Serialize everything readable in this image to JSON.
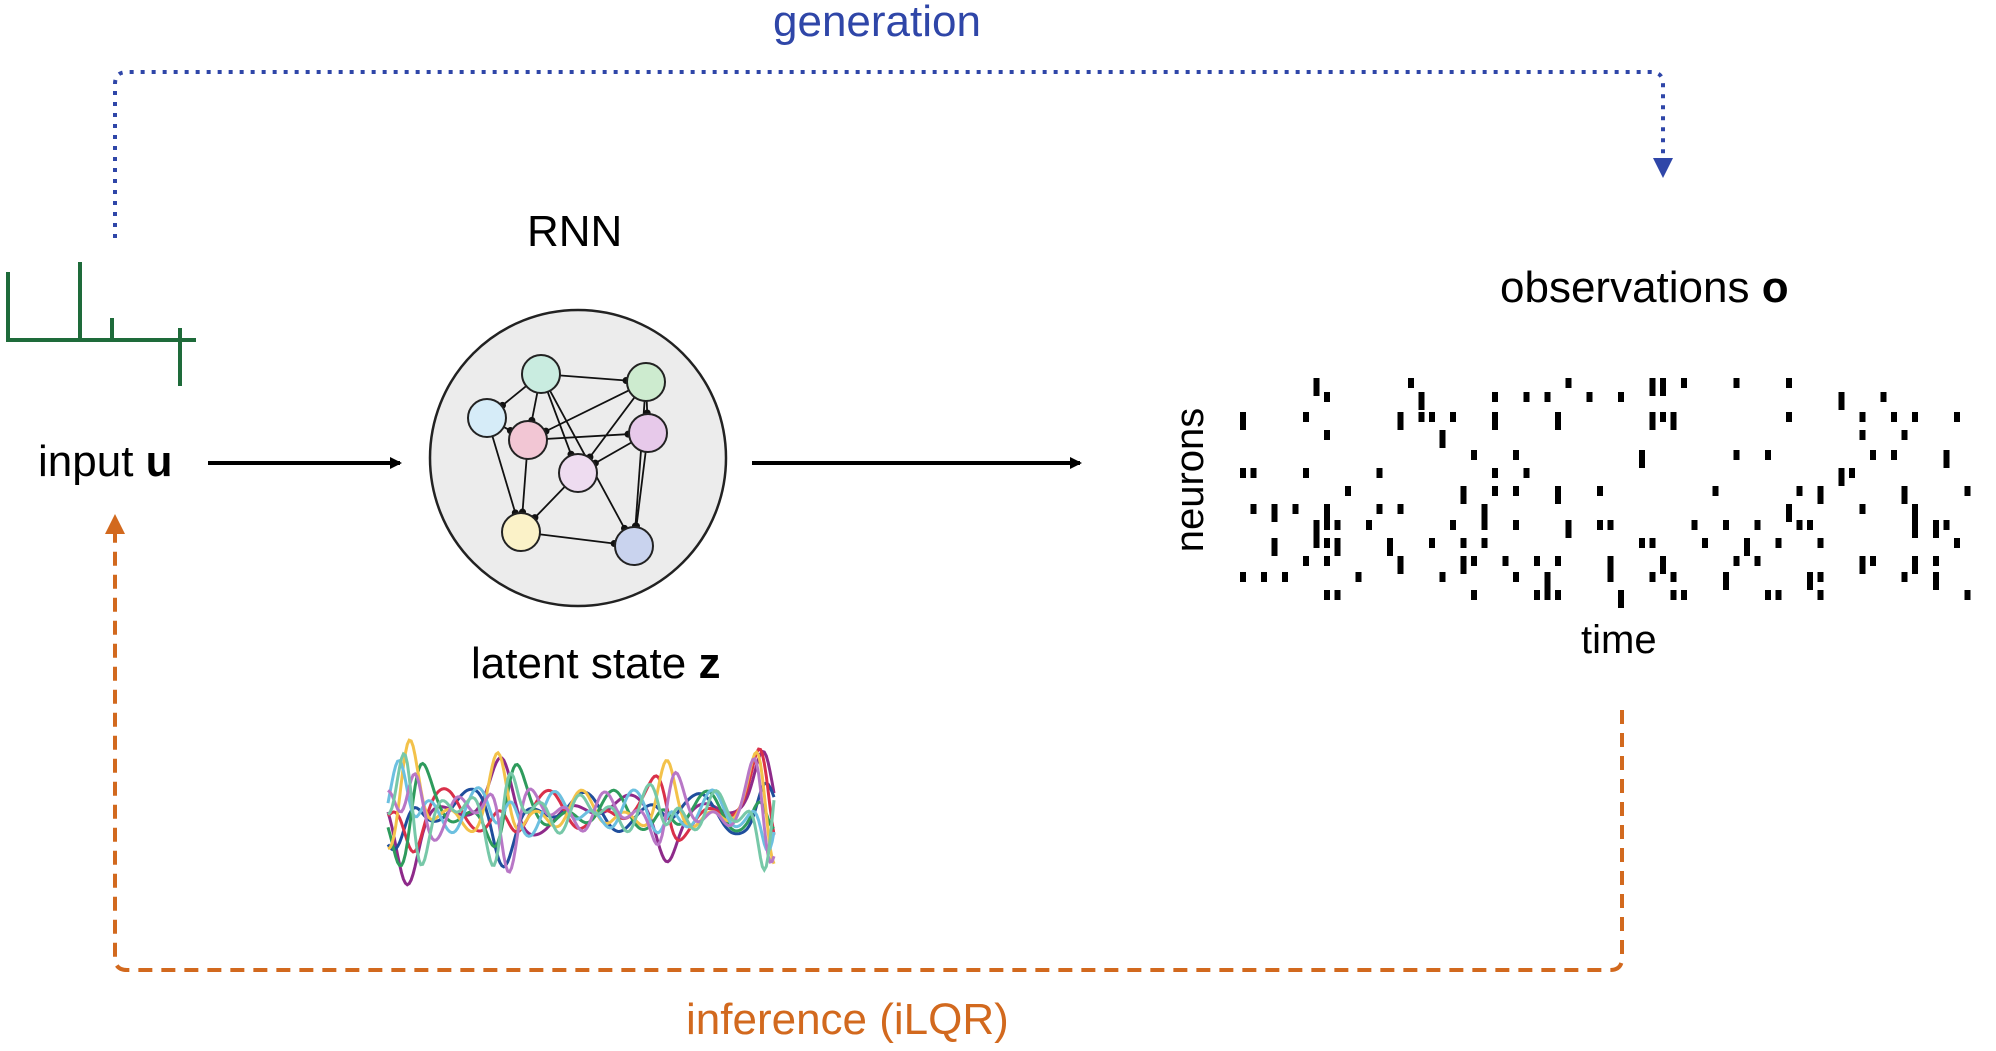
{
  "labels": {
    "generation": "generation",
    "inference": "inference (iLQR)",
    "rnn": "RNN",
    "input_prefix": "input ",
    "input_symbol": "u",
    "latent_prefix": "latent state ",
    "latent_symbol": "z",
    "observations_prefix": "observations ",
    "observations_symbol": "o",
    "x_axis": "time",
    "y_axis": "neurons"
  },
  "colors": {
    "generation": "#2f46a8",
    "inference": "#d2691e",
    "input_trace": "#1e6b3a",
    "arrows": "#000000"
  },
  "rnn_nodes": [
    {
      "name": "node-teal-top",
      "color": "#c9ece0"
    },
    {
      "name": "node-green-right",
      "color": "#cdebcf"
    },
    {
      "name": "node-blue-left",
      "color": "#d6ecf8"
    },
    {
      "name": "node-pink",
      "color": "#f2c6d4"
    },
    {
      "name": "node-purple-right",
      "color": "#e7c9ea"
    },
    {
      "name": "node-lilac-center",
      "color": "#eedcf0"
    },
    {
      "name": "node-yellow",
      "color": "#fbf2c8"
    },
    {
      "name": "node-slate",
      "color": "#c9d3ee"
    }
  ],
  "latent_traces": [
    {
      "color": "#8e2a8a"
    },
    {
      "color": "#1f4e9c"
    },
    {
      "color": "#d9304a"
    },
    {
      "color": "#2e9b5c"
    },
    {
      "color": "#f3c24a"
    },
    {
      "color": "#6cc0e0"
    },
    {
      "color": "#b877c6"
    },
    {
      "color": "#77c8a8"
    }
  ]
}
